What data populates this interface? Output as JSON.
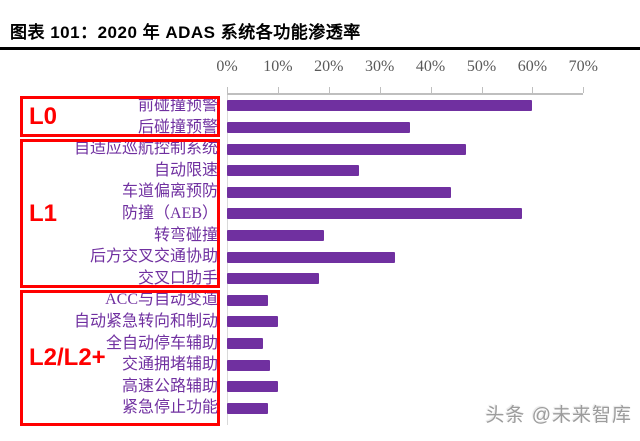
{
  "header": {
    "title": "图表 101：2020 年 ADAS 系统各功能渗透率"
  },
  "watermark": {
    "text": "头条 @未来智库"
  },
  "colors": {
    "bar": "#7030A0",
    "category_label": "#7030A0",
    "group_box": "#FF0000",
    "axis": "#BFBFBF",
    "tick_label": "#595959",
    "title_rule": "#000000"
  },
  "chart_data": {
    "type": "bar",
    "orientation": "horizontal",
    "title": "2020 年 ADAS 系统各功能渗透率",
    "x_axis": {
      "position": "top",
      "range": [
        0,
        70
      ],
      "ticks": [
        "0%",
        "10%",
        "20%",
        "30%",
        "40%",
        "50%",
        "60%",
        "70%"
      ],
      "tick_values": [
        0,
        10,
        20,
        30,
        40,
        50,
        60,
        70
      ],
      "grid": false
    },
    "categories": [
      "前碰撞预警",
      "后碰撞预警",
      "自适应巡航控制系统",
      "自动限速",
      "车道偏离预防",
      "防撞（AEB）",
      "转弯碰撞",
      "后方交叉交通协助",
      "交叉口助手",
      "ACC与自动变道",
      "自动紧急转向和制动",
      "全自动停车辅助",
      "交通拥堵辅助",
      "高速公路辅助",
      "紧急停止功能"
    ],
    "values": [
      60,
      36,
      47,
      26,
      44,
      58,
      19,
      33,
      18,
      8,
      10,
      7,
      8.5,
      10,
      8
    ],
    "unit": "%",
    "groups": [
      {
        "label": "L0",
        "start": 0,
        "count": 2
      },
      {
        "label": "L1",
        "start": 2,
        "count": 7
      },
      {
        "label": "L2/L2+",
        "start": 9,
        "count": 6
      }
    ],
    "legend": null
  }
}
